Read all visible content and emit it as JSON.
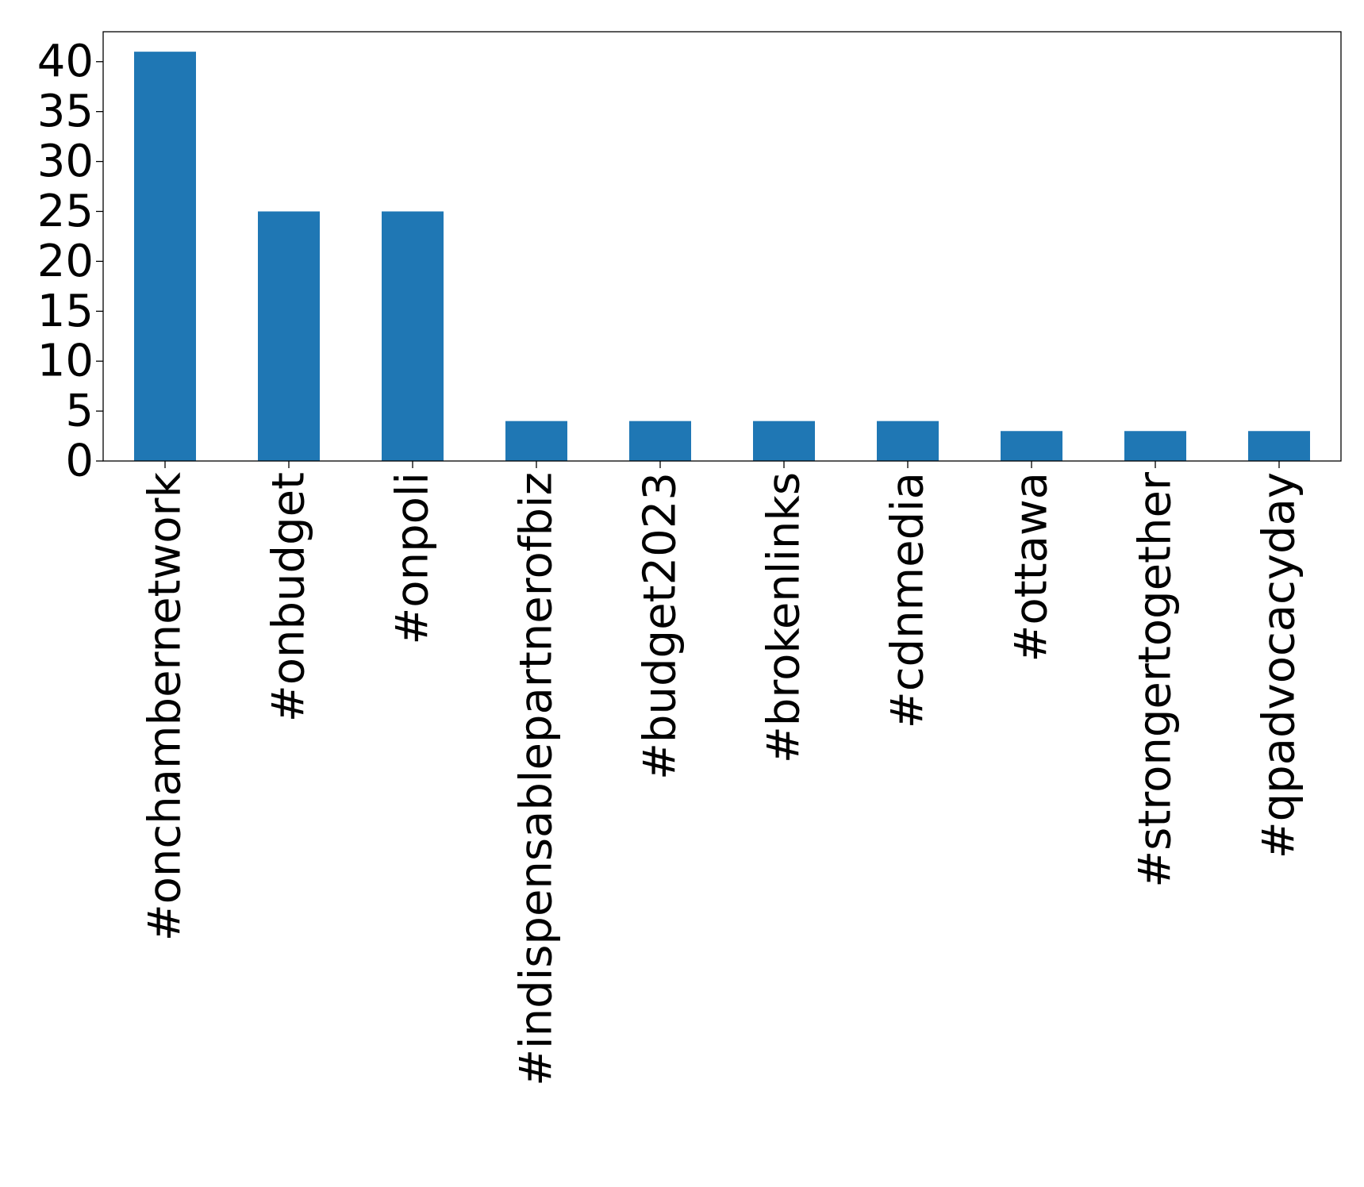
{
  "chart_data": {
    "type": "bar",
    "title": "",
    "xlabel": "",
    "ylabel": "",
    "categories": [
      "#onchambernetwork",
      "#onbudget",
      "#onpoli",
      "#indispensablepartnerofbiz",
      "#budget2023",
      "#brokenlinks",
      "#cdnmedia",
      "#ottawa",
      "#strongertogether",
      "#qpadvocacyday"
    ],
    "values": [
      41,
      25,
      25,
      4,
      4,
      4,
      4,
      3,
      3,
      3
    ],
    "ylim": [
      0,
      43
    ],
    "yticks": [
      0,
      5,
      10,
      15,
      20,
      25,
      30,
      35,
      40
    ],
    "grid": false,
    "legend": "none",
    "bar_color": "#1f77b4"
  }
}
